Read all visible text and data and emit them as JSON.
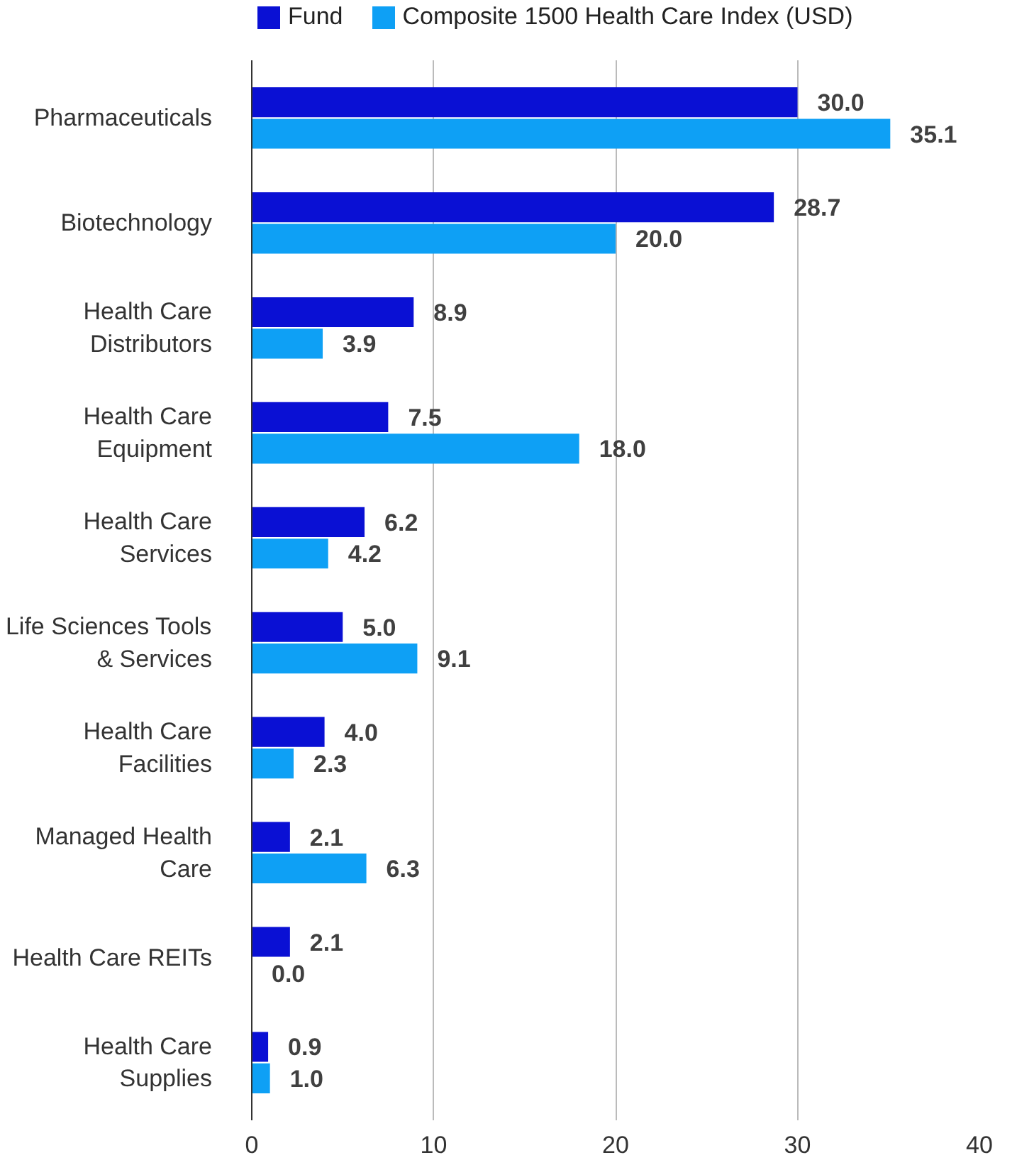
{
  "chart_data": {
    "type": "bar",
    "orientation": "horizontal",
    "categories": [
      "Pharmaceuticals",
      "Biotechnology",
      "Health Care\nDistributors",
      "Health Care\nEquipment",
      "Health Care\nServices",
      "Life Sciences Tools\n& Services",
      "Health Care\nFacilities",
      "Managed Health\nCare",
      "Health Care REITs",
      "Health Care\nSupplies"
    ],
    "series": [
      {
        "name": "Fund",
        "color": "#0a10d4",
        "values": [
          30.0,
          28.7,
          8.9,
          7.5,
          6.2,
          5.0,
          4.0,
          2.1,
          2.1,
          0.9
        ],
        "value_labels": [
          "30.0",
          "28.7",
          "8.9",
          "7.5",
          "6.2",
          "5.0",
          "4.0",
          "2.1",
          "2.1",
          "0.9"
        ]
      },
      {
        "name": "Composite 1500 Health Care Index (USD)",
        "color": "#0ea0f5",
        "values": [
          35.1,
          20.0,
          3.9,
          18.0,
          4.2,
          9.1,
          2.3,
          6.3,
          0.0,
          1.0
        ],
        "value_labels": [
          "35.1",
          "20.0",
          "3.9",
          "18.0",
          "4.2",
          "9.1",
          "2.3",
          "6.3",
          "0.0",
          "1.0"
        ]
      }
    ],
    "xlim": [
      0,
      40
    ],
    "xticks": [
      0,
      10,
      20,
      30,
      40
    ],
    "grid": "x",
    "legend": "top left"
  }
}
